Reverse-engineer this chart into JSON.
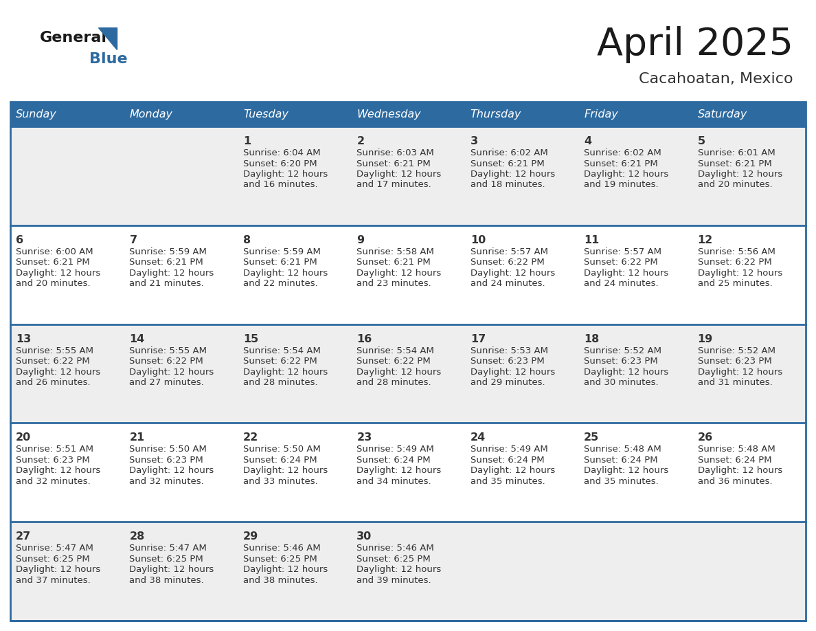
{
  "title": "April 2025",
  "subtitle": "Cacahoatan, Mexico",
  "days_of_week": [
    "Sunday",
    "Monday",
    "Tuesday",
    "Wednesday",
    "Thursday",
    "Friday",
    "Saturday"
  ],
  "header_bg": "#2D6AA0",
  "header_text": "#FFFFFF",
  "cell_bg_odd": "#EEEEEE",
  "cell_bg_even": "#FFFFFF",
  "row_line_color": "#2D6AA0",
  "text_color": "#333333",
  "title_color": "#1a1a1a",
  "subtitle_color": "#333333",
  "general_color": "#1a1a1a",
  "blue_color": "#2D6AA0",
  "calendar_data": [
    [
      {
        "day": "",
        "info": ""
      },
      {
        "day": "",
        "info": ""
      },
      {
        "day": "1",
        "info": "Sunrise: 6:04 AM\nSunset: 6:20 PM\nDaylight: 12 hours\nand 16 minutes."
      },
      {
        "day": "2",
        "info": "Sunrise: 6:03 AM\nSunset: 6:21 PM\nDaylight: 12 hours\nand 17 minutes."
      },
      {
        "day": "3",
        "info": "Sunrise: 6:02 AM\nSunset: 6:21 PM\nDaylight: 12 hours\nand 18 minutes."
      },
      {
        "day": "4",
        "info": "Sunrise: 6:02 AM\nSunset: 6:21 PM\nDaylight: 12 hours\nand 19 minutes."
      },
      {
        "day": "5",
        "info": "Sunrise: 6:01 AM\nSunset: 6:21 PM\nDaylight: 12 hours\nand 20 minutes."
      }
    ],
    [
      {
        "day": "6",
        "info": "Sunrise: 6:00 AM\nSunset: 6:21 PM\nDaylight: 12 hours\nand 20 minutes."
      },
      {
        "day": "7",
        "info": "Sunrise: 5:59 AM\nSunset: 6:21 PM\nDaylight: 12 hours\nand 21 minutes."
      },
      {
        "day": "8",
        "info": "Sunrise: 5:59 AM\nSunset: 6:21 PM\nDaylight: 12 hours\nand 22 minutes."
      },
      {
        "day": "9",
        "info": "Sunrise: 5:58 AM\nSunset: 6:21 PM\nDaylight: 12 hours\nand 23 minutes."
      },
      {
        "day": "10",
        "info": "Sunrise: 5:57 AM\nSunset: 6:22 PM\nDaylight: 12 hours\nand 24 minutes."
      },
      {
        "day": "11",
        "info": "Sunrise: 5:57 AM\nSunset: 6:22 PM\nDaylight: 12 hours\nand 24 minutes."
      },
      {
        "day": "12",
        "info": "Sunrise: 5:56 AM\nSunset: 6:22 PM\nDaylight: 12 hours\nand 25 minutes."
      }
    ],
    [
      {
        "day": "13",
        "info": "Sunrise: 5:55 AM\nSunset: 6:22 PM\nDaylight: 12 hours\nand 26 minutes."
      },
      {
        "day": "14",
        "info": "Sunrise: 5:55 AM\nSunset: 6:22 PM\nDaylight: 12 hours\nand 27 minutes."
      },
      {
        "day": "15",
        "info": "Sunrise: 5:54 AM\nSunset: 6:22 PM\nDaylight: 12 hours\nand 28 minutes."
      },
      {
        "day": "16",
        "info": "Sunrise: 5:54 AM\nSunset: 6:22 PM\nDaylight: 12 hours\nand 28 minutes."
      },
      {
        "day": "17",
        "info": "Sunrise: 5:53 AM\nSunset: 6:23 PM\nDaylight: 12 hours\nand 29 minutes."
      },
      {
        "day": "18",
        "info": "Sunrise: 5:52 AM\nSunset: 6:23 PM\nDaylight: 12 hours\nand 30 minutes."
      },
      {
        "day": "19",
        "info": "Sunrise: 5:52 AM\nSunset: 6:23 PM\nDaylight: 12 hours\nand 31 minutes."
      }
    ],
    [
      {
        "day": "20",
        "info": "Sunrise: 5:51 AM\nSunset: 6:23 PM\nDaylight: 12 hours\nand 32 minutes."
      },
      {
        "day": "21",
        "info": "Sunrise: 5:50 AM\nSunset: 6:23 PM\nDaylight: 12 hours\nand 32 minutes."
      },
      {
        "day": "22",
        "info": "Sunrise: 5:50 AM\nSunset: 6:24 PM\nDaylight: 12 hours\nand 33 minutes."
      },
      {
        "day": "23",
        "info": "Sunrise: 5:49 AM\nSunset: 6:24 PM\nDaylight: 12 hours\nand 34 minutes."
      },
      {
        "day": "24",
        "info": "Sunrise: 5:49 AM\nSunset: 6:24 PM\nDaylight: 12 hours\nand 35 minutes."
      },
      {
        "day": "25",
        "info": "Sunrise: 5:48 AM\nSunset: 6:24 PM\nDaylight: 12 hours\nand 35 minutes."
      },
      {
        "day": "26",
        "info": "Sunrise: 5:48 AM\nSunset: 6:24 PM\nDaylight: 12 hours\nand 36 minutes."
      }
    ],
    [
      {
        "day": "27",
        "info": "Sunrise: 5:47 AM\nSunset: 6:25 PM\nDaylight: 12 hours\nand 37 minutes."
      },
      {
        "day": "28",
        "info": "Sunrise: 5:47 AM\nSunset: 6:25 PM\nDaylight: 12 hours\nand 38 minutes."
      },
      {
        "day": "29",
        "info": "Sunrise: 5:46 AM\nSunset: 6:25 PM\nDaylight: 12 hours\nand 38 minutes."
      },
      {
        "day": "30",
        "info": "Sunrise: 5:46 AM\nSunset: 6:25 PM\nDaylight: 12 hours\nand 39 minutes."
      },
      {
        "day": "",
        "info": ""
      },
      {
        "day": "",
        "info": ""
      },
      {
        "day": "",
        "info": ""
      }
    ]
  ]
}
